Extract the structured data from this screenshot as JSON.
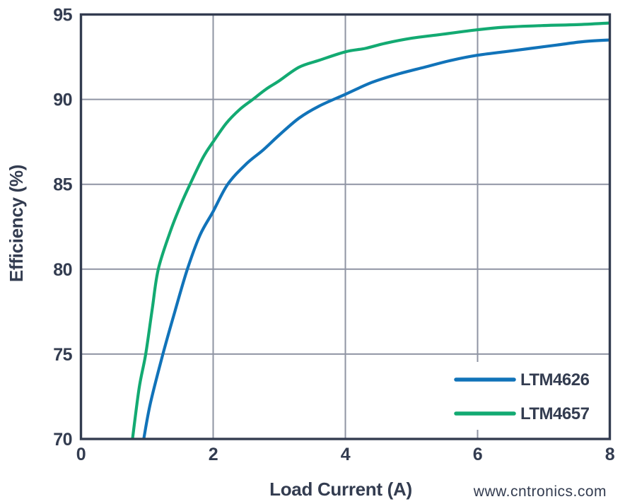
{
  "watermark": {
    "text": "www.cntronics.com",
    "color": "#c7e9c4"
  },
  "chart_data": {
    "type": "line",
    "title": "",
    "xlabel": "Load Current (A)",
    "ylabel": "Efficiency (%)",
    "xlim": [
      0,
      8
    ],
    "ylim": [
      70,
      95
    ],
    "x_ticks": [
      0,
      2,
      4,
      6,
      8
    ],
    "y_ticks": [
      70,
      75,
      80,
      85,
      90,
      95
    ],
    "grid": true,
    "legend_position": "inside-bottom-right",
    "colors": {
      "axis": "#333c50",
      "grid": "#8f94a3",
      "background": "#ffffff"
    },
    "series": [
      {
        "name": "LTM4626",
        "color": "#1173b9",
        "points": [
          [
            0.95,
            70
          ],
          [
            1.05,
            72.1
          ],
          [
            1.24,
            75
          ],
          [
            1.42,
            77.5
          ],
          [
            1.61,
            80
          ],
          [
            1.8,
            82
          ],
          [
            2.0,
            83.4
          ],
          [
            2.22,
            85
          ],
          [
            2.5,
            86.2
          ],
          [
            2.75,
            87
          ],
          [
            3.0,
            87.9
          ],
          [
            3.3,
            88.9
          ],
          [
            3.6,
            89.6
          ],
          [
            4.0,
            90.3
          ],
          [
            4.4,
            91.0
          ],
          [
            4.8,
            91.5
          ],
          [
            5.2,
            91.9
          ],
          [
            5.6,
            92.3
          ],
          [
            6.0,
            92.6
          ],
          [
            6.4,
            92.8
          ],
          [
            6.8,
            93.0
          ],
          [
            7.2,
            93.2
          ],
          [
            7.6,
            93.4
          ],
          [
            8.0,
            93.5
          ]
        ]
      },
      {
        "name": "LTM4657",
        "color": "#13aa72",
        "points": [
          [
            0.78,
            70
          ],
          [
            0.88,
            73
          ],
          [
            0.98,
            75
          ],
          [
            1.08,
            77.7
          ],
          [
            1.17,
            80
          ],
          [
            1.35,
            82.2
          ],
          [
            1.5,
            83.7
          ],
          [
            1.65,
            85
          ],
          [
            1.85,
            86.6
          ],
          [
            2.0,
            87.5
          ],
          [
            2.2,
            88.6
          ],
          [
            2.4,
            89.4
          ],
          [
            2.6,
            90.0
          ],
          [
            2.8,
            90.6
          ],
          [
            3.0,
            91.1
          ],
          [
            3.3,
            91.9
          ],
          [
            3.6,
            92.3
          ],
          [
            4.0,
            92.8
          ],
          [
            4.3,
            93.0
          ],
          [
            4.6,
            93.3
          ],
          [
            5.0,
            93.6
          ],
          [
            5.4,
            93.8
          ],
          [
            6.0,
            94.1
          ],
          [
            6.4,
            94.25
          ],
          [
            7.0,
            94.35
          ],
          [
            7.5,
            94.4
          ],
          [
            8.0,
            94.5
          ]
        ]
      }
    ]
  }
}
